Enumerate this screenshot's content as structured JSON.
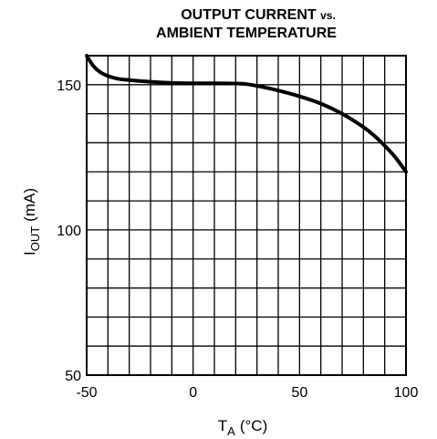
{
  "chart_data": {
    "type": "line",
    "title_line1": "OUTPUT CURRENT",
    "title_vs": "vs.",
    "title_line2": "AMBIENT TEMPERATURE",
    "xlabel": "T",
    "xlabel_sub": "A",
    "xlabel_unit": "(°C)",
    "ylabel": "I",
    "ylabel_sub": "OUT",
    "ylabel_unit": "(mA)",
    "xlim": [
      -50,
      100
    ],
    "ylim": [
      50,
      160
    ],
    "x_ticks": [
      "-50",
      "0",
      "50",
      "100"
    ],
    "x_tick_values": [
      -50,
      0,
      50,
      100
    ],
    "y_ticks": [
      "50",
      "100",
      "150"
    ],
    "y_tick_values": [
      50,
      100,
      150
    ],
    "grid": true,
    "grid_x_step": 10,
    "grid_y_step": 10,
    "series": [
      {
        "x": [
          -50,
          -47,
          -44,
          -40,
          -35,
          -30,
          -20,
          -10,
          0,
          10,
          20,
          25,
          30,
          40,
          50,
          60,
          70,
          80,
          85,
          90,
          95,
          100
        ],
        "values": [
          160,
          156.6,
          154.5,
          153,
          152,
          151.6,
          151,
          150.6,
          150.5,
          150.5,
          150.4,
          150.2,
          149.6,
          148,
          146,
          143.5,
          140,
          135.4,
          132.5,
          129,
          125,
          120
        ]
      }
    ]
  }
}
